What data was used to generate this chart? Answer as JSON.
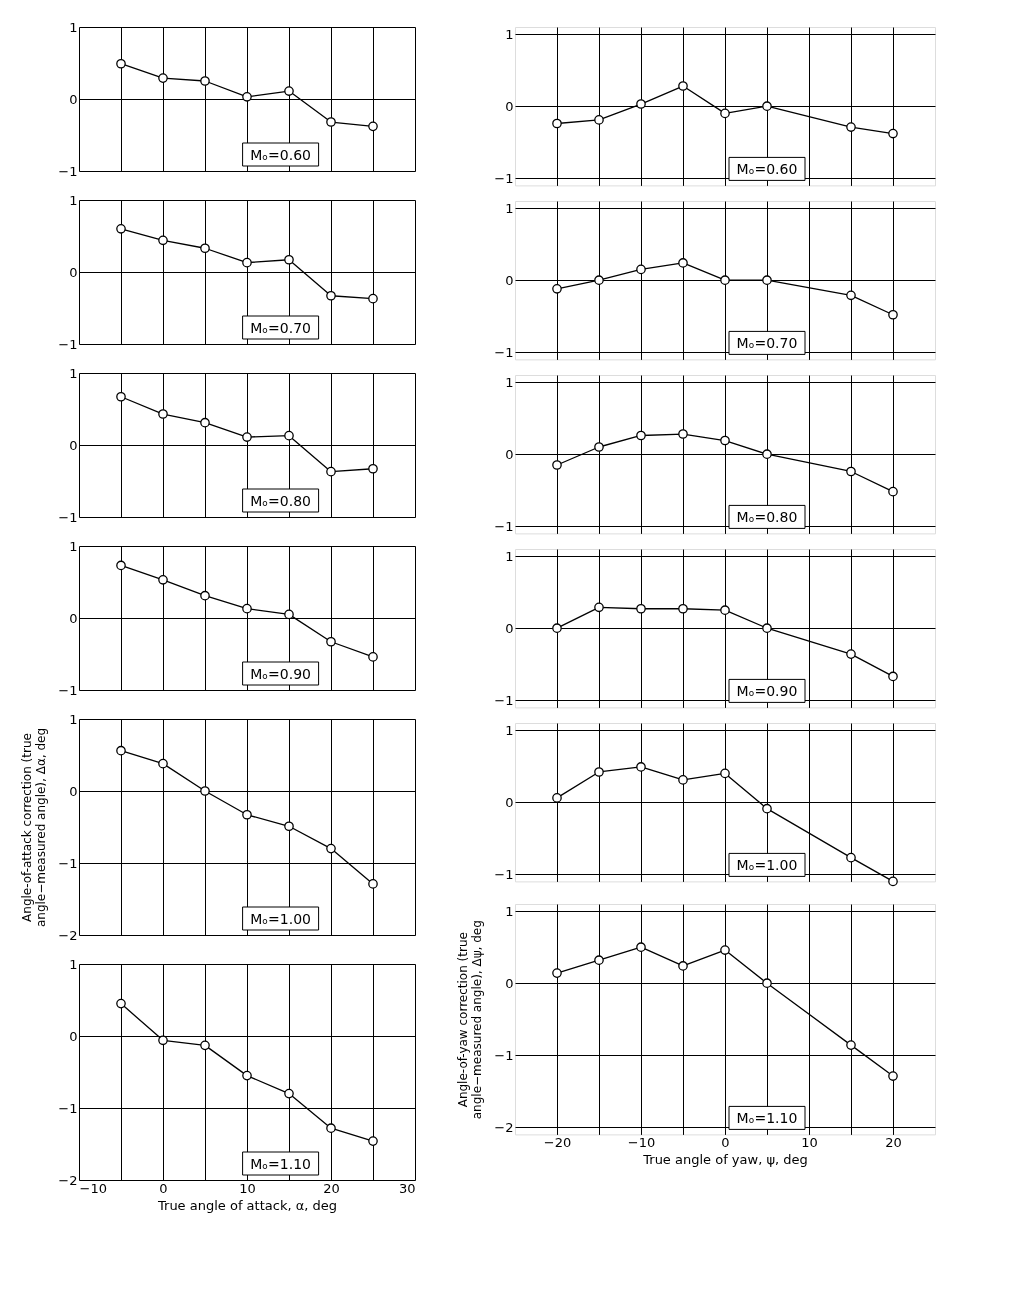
{
  "chart_data": [
    {
      "type": "line",
      "marker": "circle",
      "line_style": "solid",
      "grid": true,
      "tick_labels": "y",
      "annotations": [
        "Mₒ=0.60"
      ],
      "x": [
        -5,
        0,
        5,
        10,
        15,
        20,
        25
      ],
      "xlim": [
        -10,
        30
      ],
      "xticks": [
        -10,
        {
          "value": -5,
          "label": null
        },
        0,
        {
          "value": 5,
          "label": null
        },
        10,
        {
          "value": 15,
          "label": null
        },
        20,
        {
          "value": 25,
          "label": null
        },
        30
      ],
      "ylim": [
        -1,
        1
      ],
      "yticks": [
        1,
        0,
        -1
      ],
      "series": [
        {
          "color": "#000000",
          "values": [
            0.49,
            0.29,
            0.25,
            0.03,
            0.11,
            -0.32,
            -0.38
          ]
        }
      ]
    },
    {
      "type": "line",
      "marker": "circle",
      "line_style": "solid",
      "grid": true,
      "tick_labels": "y",
      "annotations": [
        "Mₒ=0.70"
      ],
      "x": [
        -5,
        0,
        5,
        10,
        15,
        20,
        25
      ],
      "xlim": [
        -10,
        30
      ],
      "xticks": [
        -10,
        {
          "value": -5,
          "label": null
        },
        0,
        {
          "value": 5,
          "label": null
        },
        10,
        {
          "value": 15,
          "label": null
        },
        20,
        {
          "value": 25,
          "label": null
        },
        30
      ],
      "ylim": [
        -1,
        1
      ],
      "yticks": [
        1,
        0,
        -1
      ],
      "series": [
        {
          "color": "#000000",
          "values": [
            0.6,
            0.44,
            0.33,
            0.13,
            0.17,
            -0.33,
            -0.37
          ]
        }
      ]
    },
    {
      "type": "line",
      "marker": "circle",
      "line_style": "solid",
      "grid": true,
      "tick_labels": "y",
      "annotations": [
        "Mₒ=0.80"
      ],
      "x": [
        -5,
        0,
        5,
        10,
        15,
        20,
        25
      ],
      "xlim": [
        -10,
        30
      ],
      "xticks": [
        -10,
        {
          "value": -5,
          "label": null
        },
        0,
        {
          "value": 5,
          "label": null
        },
        10,
        {
          "value": 15,
          "label": null
        },
        20,
        {
          "value": 25,
          "label": null
        },
        30
      ],
      "ylim": [
        -1,
        1
      ],
      "yticks": [
        1,
        0,
        -1
      ],
      "series": [
        {
          "color": "#000000",
          "values": [
            0.67,
            0.43,
            0.31,
            0.11,
            0.13,
            -0.37,
            -0.33
          ]
        }
      ]
    },
    {
      "type": "line",
      "marker": "circle",
      "line_style": "solid",
      "grid": true,
      "tick_labels": "y",
      "annotations": [
        "Mₒ=0.90"
      ],
      "x": [
        -5,
        0,
        5,
        10,
        15,
        20,
        25
      ],
      "xlim": [
        -10,
        30
      ],
      "xticks": [
        -10,
        {
          "value": -5,
          "label": null
        },
        0,
        {
          "value": 5,
          "label": null
        },
        10,
        {
          "value": 15,
          "label": null
        },
        20,
        {
          "value": 25,
          "label": null
        },
        30
      ],
      "ylim": [
        -1,
        1
      ],
      "yticks": [
        1,
        0,
        -1
      ],
      "series": [
        {
          "color": "#000000",
          "values": [
            0.73,
            0.53,
            0.31,
            0.13,
            0.05,
            -0.33,
            -0.54
          ]
        }
      ]
    },
    {
      "type": "line",
      "marker": "circle",
      "line_style": "solid",
      "grid": true,
      "tick_labels": "y",
      "annotations": [
        "Mₒ=1.00"
      ],
      "ylabel": "Angle-of-attack correction (true angle−measured angle), Δα, deg",
      "x": [
        -5,
        0,
        5,
        10,
        15,
        20,
        25
      ],
      "xlim": [
        -10,
        30
      ],
      "xticks": [
        -10,
        {
          "value": -5,
          "label": null
        },
        0,
        {
          "value": 5,
          "label": null
        },
        10,
        {
          "value": 15,
          "label": null
        },
        20,
        {
          "value": 25,
          "label": null
        },
        30
      ],
      "ylim": [
        -2,
        1
      ],
      "yticks": [
        1,
        0,
        -1,
        -2
      ],
      "series": [
        {
          "color": "#000000",
          "values": [
            0.56,
            0.38,
            0,
            -0.33,
            -0.49,
            -0.8,
            -1.29
          ]
        }
      ]
    },
    {
      "type": "line",
      "marker": "circle",
      "line_style": "solid",
      "grid": true,
      "annotations": [
        "Mₒ=1.10"
      ],
      "xlabel": "True angle of attack, α, deg",
      "x": [
        -5,
        0,
        5,
        10,
        15,
        20,
        25
      ],
      "xlim": [
        -10,
        30
      ],
      "xticks": [
        -10,
        {
          "value": -5,
          "label": null
        },
        0,
        {
          "value": 5,
          "label": null
        },
        10,
        {
          "value": 15,
          "label": null
        },
        20,
        {
          "value": 25,
          "label": null
        },
        30
      ],
      "ylim": [
        -2,
        1
      ],
      "yticks": [
        1,
        0,
        -1,
        -2
      ],
      "series": [
        {
          "color": "#000000",
          "values": [
            0.45,
            -0.06,
            -0.13,
            -0.55,
            -0.8,
            -1.28,
            -1.46
          ]
        }
      ]
    },
    {
      "type": "line",
      "marker": "circle",
      "line_style": "solid",
      "grid": true,
      "tick_labels": "y",
      "annotations": [
        "Mₒ=0.60"
      ],
      "x": [
        -20,
        -15,
        -10,
        -5,
        0,
        5,
        15,
        20
      ],
      "xlim": [
        -25,
        25
      ],
      "xticks": [
        -20,
        {
          "value": -15,
          "label": null
        },
        -10,
        {
          "value": -5,
          "label": null
        },
        0,
        {
          "value": 5,
          "label": null
        },
        10,
        {
          "value": 15,
          "label": null
        },
        20
      ],
      "ylim": [
        -1.1,
        1.1
      ],
      "yticks": [
        1,
        0,
        -1
      ],
      "series": [
        {
          "color": "#000000",
          "values": [
            -0.24,
            -0.19,
            0.03,
            0.28,
            -0.1,
            0,
            -0.29,
            -0.38
          ]
        }
      ]
    },
    {
      "type": "line",
      "marker": "circle",
      "line_style": "solid",
      "grid": true,
      "tick_labels": "y",
      "annotations": [
        "Mₒ=0.70"
      ],
      "x": [
        -20,
        -15,
        -10,
        -5,
        0,
        5,
        15,
        20
      ],
      "xlim": [
        -25,
        25
      ],
      "xticks": [
        -20,
        {
          "value": -15,
          "label": null
        },
        -10,
        {
          "value": -5,
          "label": null
        },
        0,
        {
          "value": 5,
          "label": null
        },
        10,
        {
          "value": 15,
          "label": null
        },
        20
      ],
      "ylim": [
        -1.1,
        1.1
      ],
      "yticks": [
        1,
        0,
        -1
      ],
      "series": [
        {
          "color": "#000000",
          "values": [
            -0.12,
            0,
            0.15,
            0.24,
            0,
            0,
            -0.21,
            -0.48
          ]
        }
      ]
    },
    {
      "type": "line",
      "marker": "circle",
      "line_style": "solid",
      "grid": true,
      "tick_labels": "y",
      "annotations": [
        "Mₒ=0.80"
      ],
      "x": [
        -20,
        -15,
        -10,
        -5,
        0,
        5,
        15,
        20
      ],
      "xlim": [
        -25,
        25
      ],
      "xticks": [
        -20,
        {
          "value": -15,
          "label": null
        },
        -10,
        {
          "value": -5,
          "label": null
        },
        0,
        {
          "value": 5,
          "label": null
        },
        10,
        {
          "value": 15,
          "label": null
        },
        20
      ],
      "ylim": [
        -1.1,
        1.1
      ],
      "yticks": [
        1,
        0,
        -1
      ],
      "series": [
        {
          "color": "#000000",
          "values": [
            -0.15,
            0.1,
            0.26,
            0.28,
            0.19,
            0,
            -0.24,
            -0.52
          ]
        }
      ]
    },
    {
      "type": "line",
      "marker": "circle",
      "line_style": "solid",
      "grid": true,
      "tick_labels": "y",
      "annotations": [
        "Mₒ=0.90"
      ],
      "x": [
        -20,
        -15,
        -10,
        -5,
        0,
        5,
        15,
        20
      ],
      "xlim": [
        -25,
        25
      ],
      "xticks": [
        -20,
        {
          "value": -15,
          "label": null
        },
        -10,
        {
          "value": -5,
          "label": null
        },
        0,
        {
          "value": 5,
          "label": null
        },
        10,
        {
          "value": 15,
          "label": null
        },
        20
      ],
      "ylim": [
        -1.1,
        1.1
      ],
      "yticks": [
        1,
        0,
        -1
      ],
      "series": [
        {
          "color": "#000000",
          "values": [
            0,
            0.29,
            0.27,
            0.27,
            0.25,
            0,
            -0.36,
            -0.67
          ]
        }
      ]
    },
    {
      "type": "line",
      "marker": "circle",
      "line_style": "solid",
      "grid": true,
      "tick_labels": "y",
      "annotations": [
        "Mₒ=1.00"
      ],
      "x": [
        -20,
        -15,
        -10,
        -5,
        0,
        5,
        15,
        20
      ],
      "xlim": [
        -25,
        25
      ],
      "xticks": [
        -20,
        {
          "value": -15,
          "label": null
        },
        -10,
        {
          "value": -5,
          "label": null
        },
        0,
        {
          "value": 5,
          "label": null
        },
        10,
        {
          "value": 15,
          "label": null
        },
        20
      ],
      "ylim": [
        -1.1,
        1.1
      ],
      "yticks": [
        1,
        0,
        -1
      ],
      "series": [
        {
          "color": "#000000",
          "values": [
            0.06,
            0.42,
            0.49,
            0.31,
            0.4,
            -0.09,
            -0.77,
            -1.1
          ]
        }
      ]
    },
    {
      "type": "line",
      "marker": "circle",
      "line_style": "solid",
      "grid": true,
      "annotations": [
        "Mₒ=1.10"
      ],
      "xlabel": "True angle of yaw, ψ, deg",
      "ylabel": "Angle-of-yaw correction (true angle−measured angle), Δψ, deg",
      "x": [
        -20,
        -15,
        -10,
        -5,
        0,
        5,
        15,
        20
      ],
      "xlim": [
        -25,
        25
      ],
      "xticks": [
        -20,
        {
          "value": -15,
          "label": null
        },
        -10,
        {
          "value": -5,
          "label": null
        },
        0,
        {
          "value": 5,
          "label": null
        },
        10,
        {
          "value": 15,
          "label": null
        },
        20
      ],
      "ylim": [
        -2.1,
        1.1
      ],
      "yticks": [
        1,
        0,
        -1,
        -2
      ],
      "series": [
        {
          "color": "#000000",
          "values": [
            0.14,
            0.32,
            0.5,
            0.24,
            0.46,
            0,
            -0.86,
            -1.29
          ]
        }
      ]
    }
  ]
}
